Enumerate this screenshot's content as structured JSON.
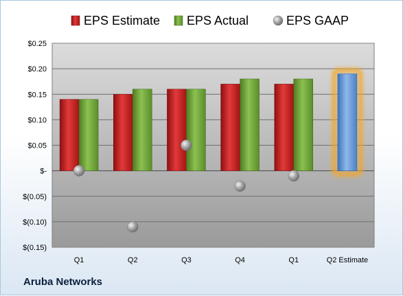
{
  "chart_data": {
    "type": "bar",
    "categories": [
      "Q1",
      "Q2",
      "Q3",
      "Q4",
      "Q1",
      "Q2 Estimate"
    ],
    "series": [
      {
        "name": "EPS Estimate",
        "values": [
          0.14,
          0.15,
          0.16,
          0.17,
          0.17,
          null
        ],
        "color": "#cc1f1f"
      },
      {
        "name": "EPS Actual",
        "values": [
          0.14,
          0.16,
          0.16,
          0.18,
          0.18,
          0.19
        ],
        "color": "#6fa33a",
        "highlight_last_color": "#5b93d3",
        "highlight_last_glow": "#f5a623"
      },
      {
        "name": "EPS GAAP",
        "marker": "circle",
        "values": [
          0.0,
          -0.11,
          0.05,
          -0.03,
          -0.01,
          null
        ],
        "color": "#8a8a8a"
      }
    ],
    "ylim": [
      -0.15,
      0.25
    ],
    "yticks": [
      0.25,
      0.2,
      0.15,
      0.1,
      0.05,
      0,
      -0.05,
      -0.1,
      -0.15
    ],
    "ytick_labels": [
      "$0.25",
      "$0.20",
      "$0.15",
      "$0.10",
      "$0.05",
      "$-",
      "$(0.05)",
      "$(0.10)",
      "$(0.15)"
    ],
    "legend_position": "top-center",
    "grid": true
  },
  "footer": {
    "company": "Aruba Networks"
  }
}
